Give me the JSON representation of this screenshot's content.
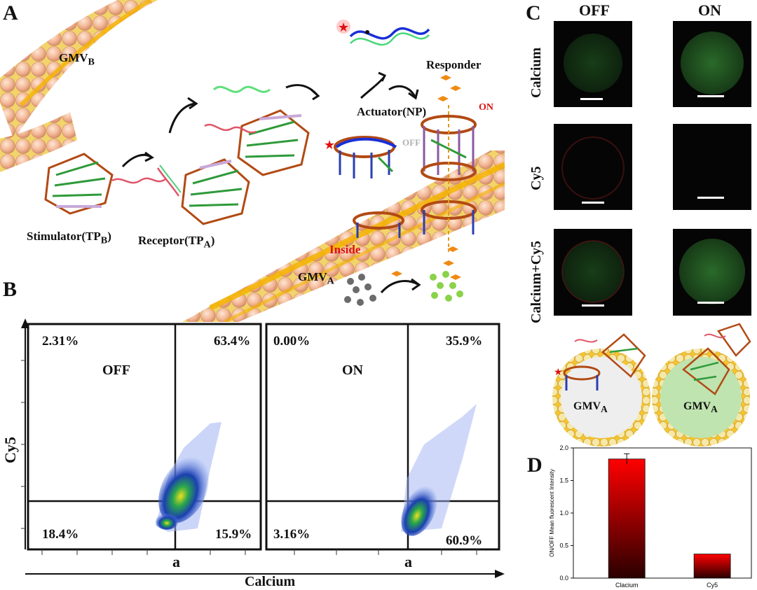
{
  "panelA": {
    "letter": "A",
    "gmv_b": "GMV",
    "gmv_b_sub": "B",
    "stimulator": "Stimulator(TP",
    "stimulator_sub": "B",
    "receptor": "Receptor(TP",
    "receptor_sub": "A",
    "actuator": "Actuator(NP)",
    "responder": "Responder",
    "on": "ON",
    "off": "OFF",
    "inside": "Inside",
    "gmv_a": "GMV",
    "gmv_a_sub": "A"
  },
  "panelB": {
    "letter": "B",
    "yaxis": "Cy5",
    "xaxis": "Calcium",
    "plots": [
      {
        "title": "OFF",
        "ul": "2.31%",
        "ur": "63.4%",
        "ll": "18.4%",
        "lr": "15.9%",
        "gate": "a"
      },
      {
        "title": "ON",
        "ul": "0.00%",
        "ur": "35.9%",
        "ll": "3.16%",
        "lr": "60.9%",
        "gate": "a"
      }
    ]
  },
  "panelC": {
    "letter": "C",
    "cols": [
      "OFF",
      "ON"
    ],
    "rows": [
      "Calcium",
      "Cy5",
      "Calcium+Cy5"
    ],
    "vesicle_label": "GMV",
    "vesicle_sub": "A"
  },
  "panelD": {
    "letter": "D"
  },
  "chart_data": {
    "type": "bar",
    "categories": [
      "Clacium",
      "Cy5"
    ],
    "values": [
      1.83,
      0.37
    ],
    "errors": [
      0.08,
      0.0
    ],
    "ylabel": "ON/OFF Mean fluorescent Intensity",
    "ylim": [
      0,
      2.0
    ],
    "yticks": [
      "0.0",
      "0.5",
      "1.0",
      "1.5",
      "2.0"
    ],
    "colors": {
      "top": "#ff0000",
      "bottom": "#2a0000"
    }
  }
}
